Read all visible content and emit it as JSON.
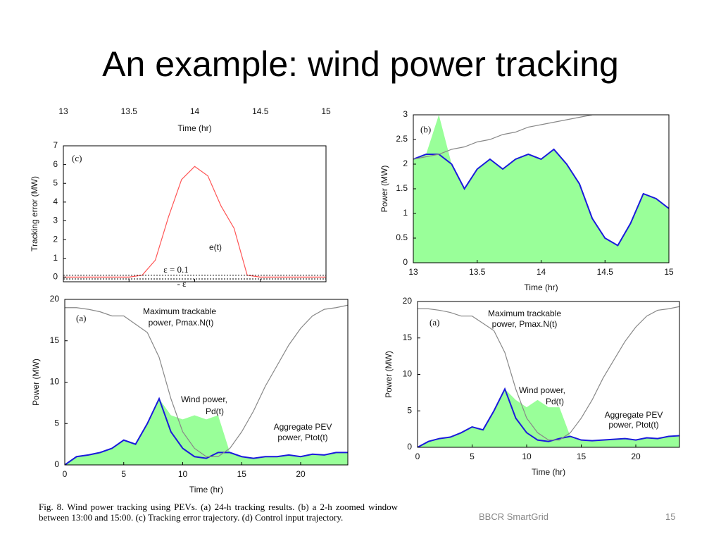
{
  "slide": {
    "title": "An example: wind power tracking",
    "caption": "Fig. 8.   Wind power tracking using PEVs. (a) 24-h tracking results. (b) a 2-h zoomed window between 13:00 and 15:00. (c) Tracking error trajectory. (d) Control input trajectory.",
    "footer": "BBCR SmartGrid",
    "page": "15"
  },
  "chart_data": [
    {
      "type": "line",
      "xaxis": "top",
      "xlabel": "Time (hr)",
      "ylabel": "Tracking error (MW)",
      "xlim": [
        13,
        15
      ],
      "xticks": [
        13,
        13.5,
        14,
        14.5,
        15
      ],
      "ylim": [
        -0.25,
        7
      ],
      "yticks": [
        0,
        1,
        2,
        3,
        4,
        5,
        6,
        7
      ],
      "hlines": [
        0.1,
        -0.1
      ],
      "annotations": [
        "(c)",
        "e(t)",
        "ε = 0.1",
        "- ε"
      ],
      "x": [
        13,
        13.1,
        13.2,
        13.3,
        13.4,
        13.5,
        13.6,
        13.7,
        13.8,
        13.9,
        14,
        14.1,
        14.2,
        14.3,
        14.4,
        14.5,
        14.6,
        14.7,
        14.8,
        14.9,
        15
      ],
      "series": [
        {
          "color": "#ff5555",
          "values": [
            0,
            0,
            0,
            0,
            0,
            0,
            0.1,
            0.9,
            3.2,
            5.2,
            5.9,
            5.4,
            3.8,
            2.6,
            0.1,
            0,
            0,
            0,
            0,
            0,
            0
          ]
        }
      ]
    },
    {
      "type": "area",
      "xlabel": "Time (hr)",
      "ylabel": "Power (MW)",
      "xlim": [
        13,
        15
      ],
      "xticks": [
        13,
        13.5,
        14,
        14.5,
        15
      ],
      "ylim": [
        0,
        3
      ],
      "yticks": [
        0,
        0.5,
        1,
        1.5,
        2,
        2.5,
        3
      ],
      "annotations": [
        "(b)"
      ],
      "x": [
        13,
        13.1,
        13.2,
        13.3,
        13.4,
        13.5,
        13.6,
        13.7,
        13.8,
        13.9,
        14,
        14.1,
        14.2,
        14.3,
        14.4,
        14.5,
        14.6,
        14.7,
        14.8,
        14.9,
        15
      ],
      "series": [
        {
          "style": "area",
          "color": "#99ff99",
          "values": [
            2.1,
            2.2,
            3.0,
            2.0,
            1.5,
            1.9,
            2.1,
            1.9,
            2.1,
            2.2,
            2.1,
            2.3,
            2.0,
            1.6,
            0.9,
            0.5,
            0.35,
            0.8,
            1.4,
            1.3,
            1.1
          ]
        },
        {
          "style": "line",
          "color": "#1a1adc",
          "values": [
            2.1,
            2.2,
            2.2,
            2.0,
            1.5,
            1.9,
            2.1,
            1.9,
            2.1,
            2.2,
            2.1,
            2.3,
            2.0,
            1.6,
            0.9,
            0.5,
            0.35,
            0.8,
            1.4,
            1.3,
            1.1
          ]
        },
        {
          "style": "line",
          "color": "#888888",
          "values": [
            2.1,
            2.15,
            2.2,
            2.3,
            2.35,
            2.45,
            2.5,
            2.6,
            2.65,
            2.75,
            2.8,
            2.85,
            2.9,
            2.95,
            3.0,
            null,
            null,
            null,
            null,
            null,
            null
          ]
        }
      ]
    },
    {
      "type": "area",
      "xlabel": "Time (hr)",
      "ylabel": "Power (MW)",
      "xlim": [
        0,
        24
      ],
      "xticks": [
        0,
        5,
        10,
        15,
        20
      ],
      "ylim": [
        0,
        20
      ],
      "yticks": [
        0,
        5,
        10,
        15,
        20
      ],
      "annotations": [
        "(a)",
        "Maximum trackable",
        "power, Pmax.N(t)",
        "Wind power,",
        "Pd(t)",
        "Aggregate PEV",
        "power, Ptot(t)"
      ],
      "x": [
        0,
        1,
        2,
        3,
        4,
        5,
        6,
        7,
        8,
        9,
        10,
        11,
        12,
        13,
        14,
        15,
        16,
        17,
        18,
        19,
        20,
        21,
        22,
        23,
        24
      ],
      "series": [
        {
          "style": "area",
          "color": "#99ff99",
          "values": [
            0,
            1,
            1.2,
            1.5,
            2,
            3,
            2.5,
            5,
            8,
            6,
            5.5,
            6,
            5.5,
            6,
            1.5,
            1,
            0.8,
            1,
            1,
            1.2,
            1,
            1.3,
            1.2,
            1.5,
            1.5
          ]
        },
        {
          "style": "line",
          "color": "#1a1adc",
          "values": [
            0,
            1,
            1.2,
            1.5,
            2,
            3,
            2.5,
            5,
            8,
            4,
            2,
            1,
            0.8,
            1.5,
            1.5,
            1,
            0.8,
            1,
            1,
            1.2,
            1,
            1.3,
            1.2,
            1.5,
            1.5
          ]
        },
        {
          "style": "line",
          "color": "#888888",
          "values": [
            19,
            19,
            18.8,
            18.5,
            18,
            18,
            17,
            16,
            13,
            8,
            4,
            2,
            1,
            1,
            2,
            4,
            6.5,
            9.5,
            12,
            14.5,
            16.5,
            18,
            18.8,
            19,
            19.3
          ]
        }
      ]
    },
    {
      "type": "area",
      "xlabel": "Time (hr)",
      "ylabel": "Power (MW)",
      "xlim": [
        0,
        24
      ],
      "xticks": [
        0,
        5,
        10,
        15,
        20
      ],
      "ylim": [
        0,
        20
      ],
      "yticks": [
        0,
        5,
        10,
        15,
        20
      ],
      "annotations": [
        "(a)",
        "Maximum trackable",
        "power, Pmax.N(t)",
        "Wind power,",
        "Pd(t)",
        "Aggregate PEV",
        "power, Ptot(t)"
      ],
      "x": [
        0,
        1,
        2,
        3,
        4,
        5,
        6,
        7,
        8,
        9,
        10,
        11,
        12,
        13,
        14,
        15,
        16,
        17,
        18,
        19,
        20,
        21,
        22,
        23,
        24
      ],
      "series": [
        {
          "style": "area",
          "color": "#99ff99",
          "values": [
            0,
            0.8,
            1.2,
            1.4,
            2,
            2.8,
            2.4,
            5,
            8,
            6.5,
            5.5,
            6.5,
            5.5,
            5.5,
            1.5,
            1,
            0.9,
            1,
            1.1,
            1.2,
            1,
            1.3,
            1.2,
            1.5,
            1.6
          ]
        },
        {
          "style": "line",
          "color": "#1a1adc",
          "values": [
            0,
            0.8,
            1.2,
            1.4,
            2,
            2.8,
            2.4,
            5,
            8,
            4,
            2,
            1,
            0.8,
            1.2,
            1.5,
            1,
            0.9,
            1,
            1.1,
            1.2,
            1,
            1.3,
            1.2,
            1.5,
            1.6
          ]
        },
        {
          "style": "line",
          "color": "#888888",
          "values": [
            19,
            19,
            18.8,
            18.5,
            18,
            18,
            17,
            16,
            13,
            8,
            4,
            2,
            1,
            1,
            2,
            4,
            6.5,
            9.5,
            12,
            14.5,
            16.5,
            18,
            18.8,
            19,
            19.3
          ]
        }
      ]
    }
  ]
}
